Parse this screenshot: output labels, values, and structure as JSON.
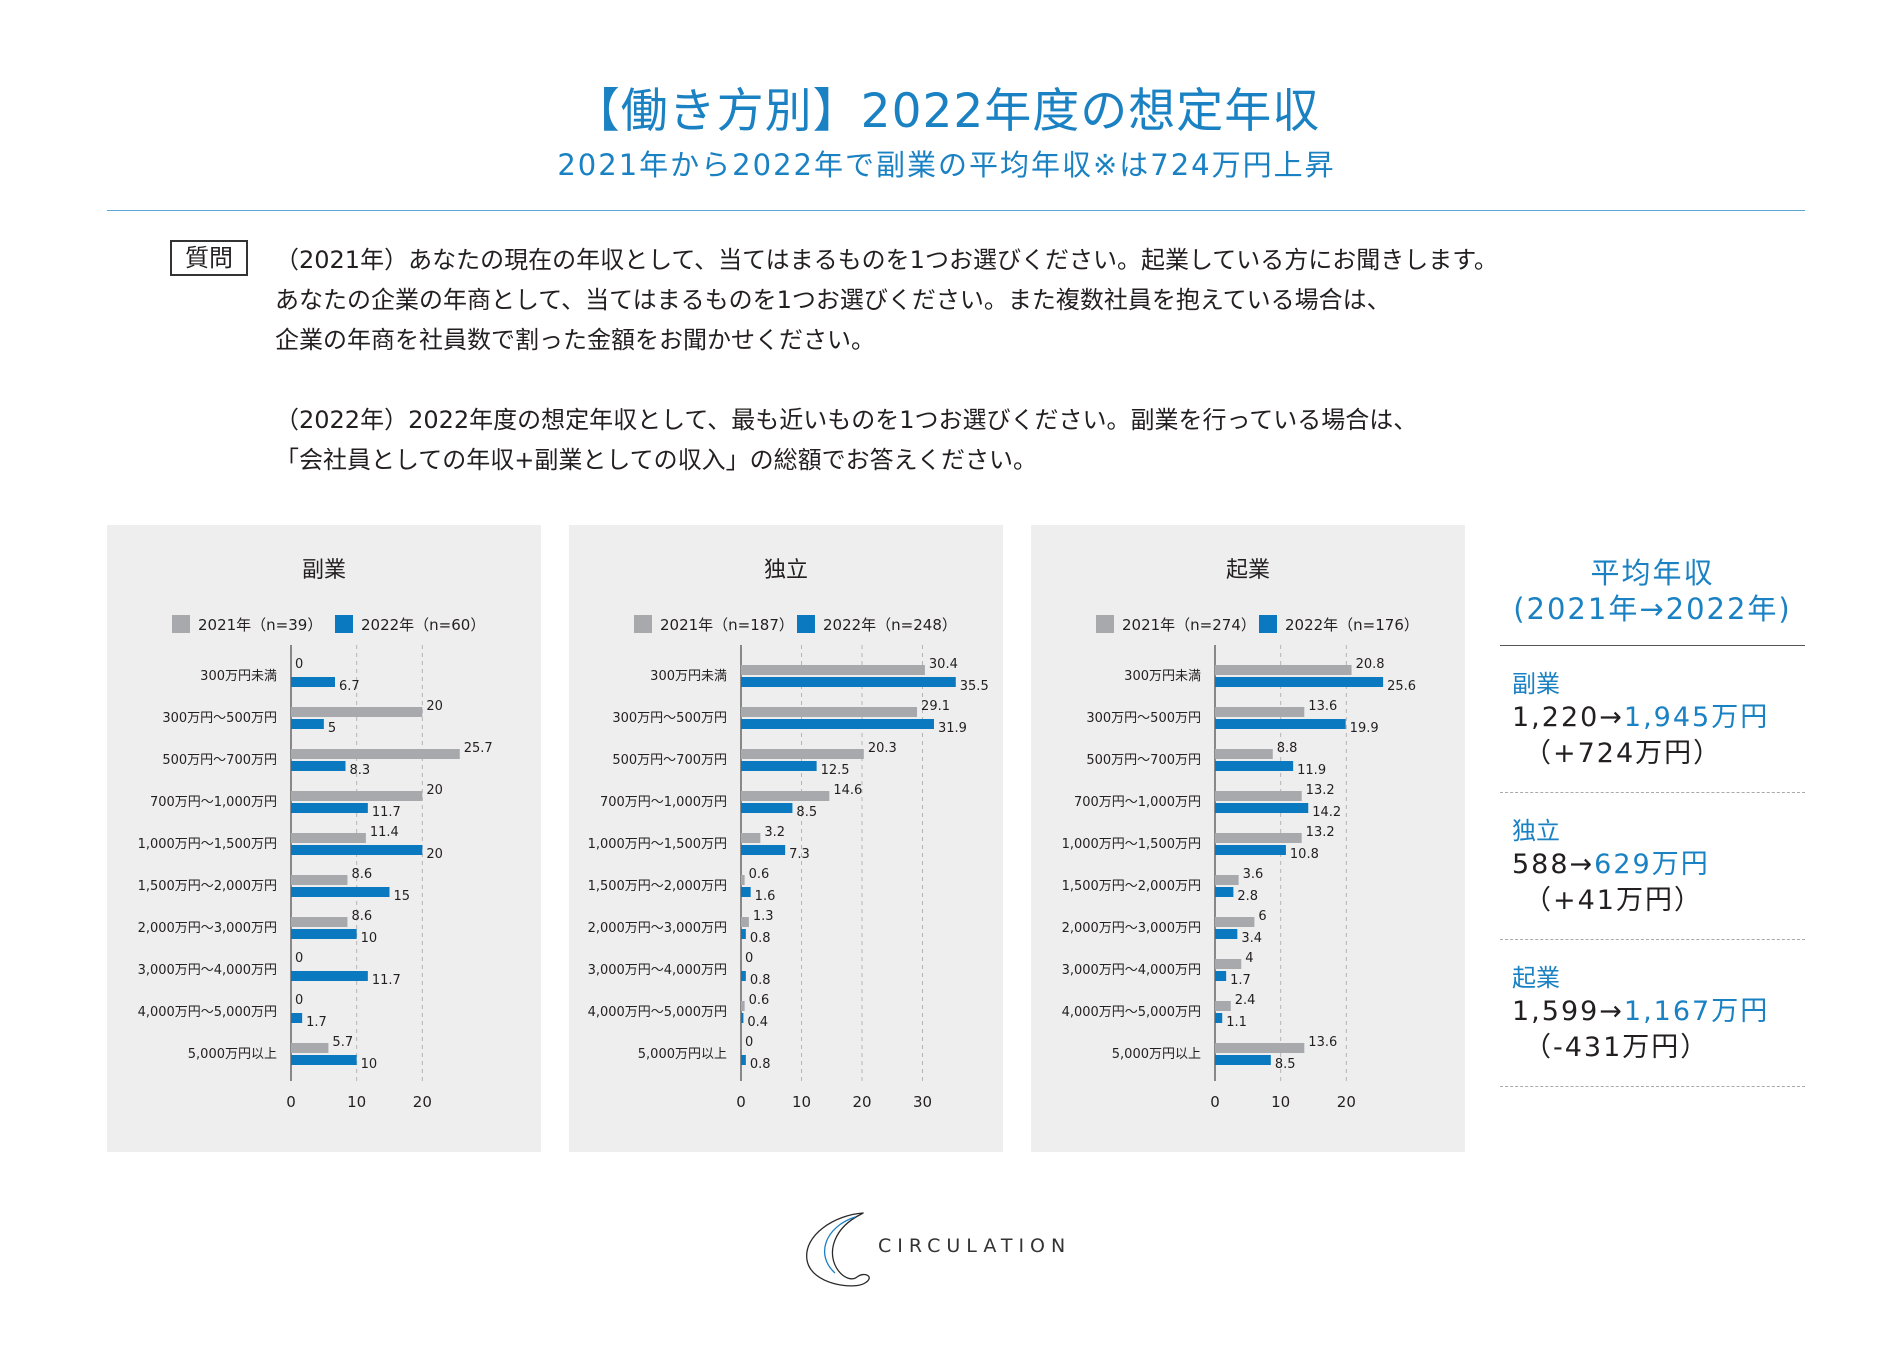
{
  "header": {
    "title": "【働き方別】2022年度の想定年収",
    "subtitle": "2021年から2022年で副業の平均年収※は724万円上昇"
  },
  "question": {
    "label": "質問",
    "lines": [
      "（2021年）あなたの現在の年収として、当てはまるものを1つお選びください。起業している方にお聞きします。",
      "あなたの企業の年商として、当てはまるものを1つお選びください。また複数社員を抱えている場合は、",
      "企業の年商を社員数で割った金額をお聞かせください。",
      "（2022年）2022年度の想定年収として、最も近いものを1つお選びください。副業を行っている場合は、",
      "「会社員としての年収+副業としての収入」の総額でお答えください。"
    ]
  },
  "colors": {
    "series_2021": "#a7a9ac",
    "series_2022": "#0b79bf",
    "accent": "#1a81c3"
  },
  "chart_data": [
    {
      "type": "bar",
      "orientation": "horizontal",
      "title": "副業",
      "categories": [
        "300万円未満",
        "300万円～500万円",
        "500万円～700万円",
        "700万円～1,000万円",
        "1,000万円～1,500万円",
        "1,500万円～2,000万円",
        "2,000万円～3,000万円",
        "3,000万円～4,000万円",
        "4,000万円～5,000万円",
        "5,000万円以上"
      ],
      "series": [
        {
          "name": "2021年（n=39）",
          "values": [
            0,
            20,
            25.7,
            20,
            11.4,
            8.6,
            8.6,
            0,
            0,
            5.7
          ],
          "labels": [
            "0",
            "20",
            "25.7",
            "20",
            "11.4",
            "8.6",
            "8.6",
            "0",
            "0",
            "5.7"
          ]
        },
        {
          "name": "2022年（n=60）",
          "values": [
            6.7,
            5,
            8.3,
            11.7,
            20,
            15,
            10,
            11.7,
            1.7,
            10
          ],
          "labels": [
            "6.7",
            "5",
            "8.3",
            "11.7",
            "20",
            "15",
            "10",
            "11.7",
            "1.7",
            "10"
          ]
        }
      ],
      "xticks": [
        0,
        10,
        20
      ],
      "xlim": [
        0,
        30
      ],
      "grid": "dashed-vertical"
    },
    {
      "type": "bar",
      "orientation": "horizontal",
      "title": "独立",
      "categories": [
        "300万円未満",
        "300万円～500万円",
        "500万円～700万円",
        "700万円～1,000万円",
        "1,000万円～1,500万円",
        "1,500万円～2,000万円",
        "2,000万円～3,000万円",
        "3,000万円～4,000万円",
        "4,000万円～5,000万円",
        "5,000万円以上"
      ],
      "series": [
        {
          "name": "2021年（n=187）",
          "values": [
            30.4,
            29.1,
            20.3,
            14.6,
            3.2,
            0.6,
            1.3,
            0,
            0.6,
            0
          ],
          "labels": [
            "30.4",
            "29.1",
            "20.3",
            "14.6",
            "3.2",
            "0.6",
            "1.3",
            "0",
            "0.6",
            "0"
          ]
        },
        {
          "name": "2022年（n=248）",
          "values": [
            35.5,
            31.9,
            12.5,
            8.5,
            7.3,
            1.6,
            0.8,
            0.8,
            0.4,
            0.8
          ],
          "labels": [
            "35.5",
            "31.9",
            "12.5",
            "8.5",
            "7.3",
            "1.6",
            "0.8",
            "0.8",
            "0.4",
            "0.8"
          ]
        }
      ],
      "xticks": [
        0,
        10,
        20,
        30
      ],
      "xlim": [
        0,
        40
      ],
      "grid": "dashed-vertical"
    },
    {
      "type": "bar",
      "orientation": "horizontal",
      "title": "起業",
      "categories": [
        "300万円未満",
        "300万円～500万円",
        "500万円～700万円",
        "700万円～1,000万円",
        "1,000万円～1,500万円",
        "1,500万円～2,000万円",
        "2,000万円～3,000万円",
        "3,000万円～4,000万円",
        "4,000万円～5,000万円",
        "5,000万円以上"
      ],
      "series": [
        {
          "name": "2021年（n=274）",
          "values": [
            20.8,
            13.6,
            8.8,
            13.2,
            13.2,
            3.6,
            6,
            4,
            2.4,
            13.6
          ],
          "labels": [
            "20.8",
            "13.6",
            "8.8",
            "13.2",
            "13.2",
            "3.6",
            "6",
            "4",
            "2.4",
            "13.6"
          ]
        },
        {
          "name": "2022年（n=176）",
          "values": [
            25.6,
            19.9,
            11.9,
            14.2,
            10.8,
            2.8,
            3.4,
            1.7,
            1.1,
            8.5
          ],
          "labels": [
            "25.6",
            "19.9",
            "11.9",
            "14.2",
            "10.8",
            "2.8",
            "3.4",
            "1.7",
            "1.1",
            "8.5"
          ]
        }
      ],
      "xticks": [
        0,
        10,
        20
      ],
      "xlim": [
        0,
        30
      ],
      "grid": "dashed-vertical"
    }
  ],
  "summary": {
    "title_line1": "平均年収",
    "title_line2": "(2021年→2022年)",
    "items": [
      {
        "name": "副業",
        "from": "1,220",
        "arrow": "→",
        "to": "1,945万円",
        "diff": "（+724万円）"
      },
      {
        "name": "独立",
        "from": "588",
        "arrow": "→",
        "to": "629万円",
        "diff": "（+41万円）"
      },
      {
        "name": "起業",
        "from": "1,599",
        "arrow": "→",
        "to": "1,167万円",
        "diff": "（-431万円）"
      }
    ]
  },
  "footer": {
    "logo_text": "CIRCULATION"
  }
}
